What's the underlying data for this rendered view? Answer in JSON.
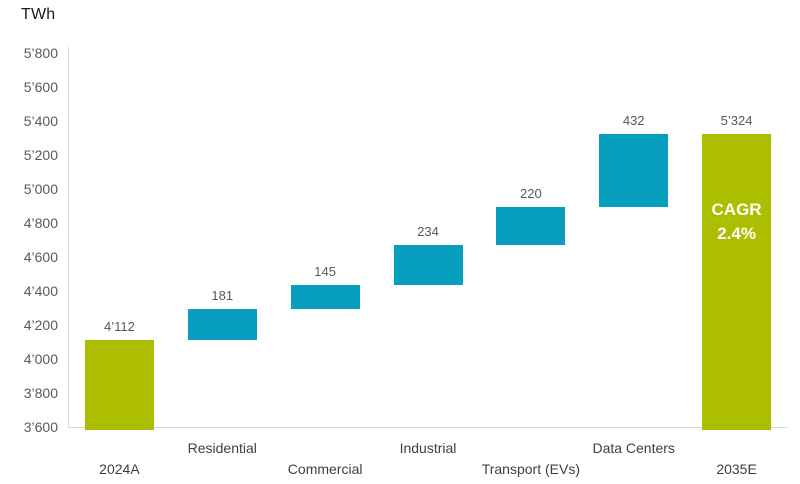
{
  "chart_data": {
    "type": "bar",
    "subtype": "waterfall",
    "unit_label": "TWh",
    "ylim": [
      3600,
      5800
    ],
    "ytick_step": 200,
    "yticks": [
      3600,
      3800,
      4000,
      4200,
      4400,
      4600,
      4800,
      5000,
      5200,
      5400,
      5600,
      5800
    ],
    "ytick_labels": [
      "3’600",
      "3’800",
      "4’000",
      "4’200",
      "4’400",
      "4’600",
      "4’800",
      "5’000",
      "5’200",
      "5’400",
      "5’600",
      "5’800"
    ],
    "grid": false,
    "legend": false,
    "bars": [
      {
        "category": "2024A",
        "role": "total",
        "start": 3600,
        "end": 4112,
        "value": 4112,
        "value_label": "4’112",
        "label_row": "lower"
      },
      {
        "category": "Residential",
        "role": "increment",
        "start": 4112,
        "end": 4293,
        "value": 181,
        "value_label": "181",
        "label_row": "upper"
      },
      {
        "category": "Commercial",
        "role": "increment",
        "start": 4293,
        "end": 4438,
        "value": 145,
        "value_label": "145",
        "label_row": "lower"
      },
      {
        "category": "Industrial",
        "role": "increment",
        "start": 4438,
        "end": 4672,
        "value": 234,
        "value_label": "234",
        "label_row": "upper"
      },
      {
        "category": "Transport (EVs)",
        "role": "increment",
        "start": 4672,
        "end": 4892,
        "value": 220,
        "value_label": "220",
        "label_row": "lower"
      },
      {
        "category": "Data Centers",
        "role": "increment",
        "start": 4892,
        "end": 5324,
        "value": 432,
        "value_label": "432",
        "label_row": "upper"
      },
      {
        "category": "2035E",
        "role": "total",
        "start": 3600,
        "end": 5324,
        "value": 5324,
        "value_label": "5’324",
        "label_row": "lower",
        "annotation": [
          "CAGR",
          "2.4%"
        ]
      }
    ],
    "colors": {
      "total_bar": "#ADBD00",
      "increment_bar": "#089EBD",
      "value_label": "#595959",
      "axis_tick_label": "#595959",
      "category_label": "#3F3F3F",
      "axis_line": "#D9D9D9",
      "annotation_text": "#FFFFFF",
      "unit_label": "#1A1A1A",
      "background": "#FFFFFF"
    }
  }
}
